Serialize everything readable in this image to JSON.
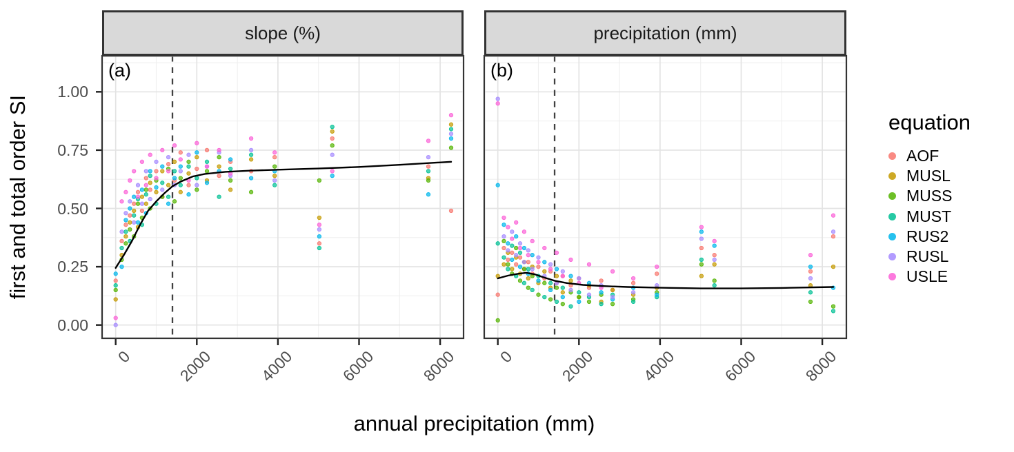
{
  "figure": {
    "x_axis_title": "annual precipitation (mm)",
    "y_axis_title": "first and total order SI",
    "x_tick_labels": [
      "0",
      "2000",
      "4000",
      "6000",
      "8000"
    ],
    "x_tick_values": [
      0,
      2000,
      4000,
      6000,
      8000
    ],
    "x_minor_values": [
      1000,
      3000,
      5000,
      7000
    ],
    "y_tick_labels": [
      "0.00",
      "0.25",
      "0.50",
      "0.75",
      "1.00"
    ],
    "y_tick_values": [
      0,
      0.25,
      0.5,
      0.75,
      1.0
    ],
    "y_minor_values": [
      0.125,
      0.375,
      0.625,
      0.875,
      1.125
    ],
    "colors": {
      "strip_bg": "#d9d9d9",
      "panel_border": "#333333",
      "grid_major": "#e3e3e3",
      "grid_minor": "#efefef",
      "tick_label": "#4d4d4d",
      "tick_mark": "#222222",
      "dashed_line": "#404040",
      "smooth_line": "#000000"
    }
  },
  "legend": {
    "title": "equation",
    "entries": [
      {
        "label": "AOF",
        "color": "#F8766D"
      },
      {
        "label": "MUSL",
        "color": "#C49A00"
      },
      {
        "label": "MUSS",
        "color": "#53B400"
      },
      {
        "label": "MUST",
        "color": "#00C094"
      },
      {
        "label": "RUS2",
        "color": "#00B6EB"
      },
      {
        "label": "RUSL",
        "color": "#A58AFF"
      },
      {
        "label": "USLE",
        "color": "#FB61D7"
      }
    ]
  },
  "chart_data": {
    "type": "scatter",
    "title": "",
    "xlabel": "annual precipitation (mm)",
    "ylabel": "first and total order SI",
    "xlim": [
      -335,
      8580
    ],
    "ylim": [
      -0.06,
      1.155
    ],
    "grid": true,
    "legend_position": "right",
    "dashed_reference_x": 1400,
    "facets": [
      {
        "key": "slope",
        "letter": "(a)",
        "strip": "slope (%)"
      },
      {
        "key": "precipitation",
        "letter": "(b)",
        "strip": "precipitation (mm)"
      }
    ],
    "x_sites": [
      0,
      150,
      250,
      350,
      450,
      550,
      650,
      750,
      850,
      1000,
      1150,
      1300,
      1450,
      1600,
      1800,
      2000,
      2250,
      2550,
      2830,
      3340,
      3920,
      5020,
      5340,
      7710,
      8270
    ],
    "series": [
      {
        "name": "AOF",
        "color": "#F8766D",
        "y_by_facet": {
          "slope": [
            0.19,
            0.36,
            0.43,
            0.47,
            0.52,
            0.57,
            0.49,
            0.63,
            0.58,
            0.66,
            0.55,
            0.69,
            0.62,
            0.74,
            0.6,
            0.67,
            0.75,
            0.64,
            0.7,
            0.66,
            0.72,
            0.35,
            0.8,
            0.68,
            0.49
          ],
          "precipitation": [
            0.13,
            0.33,
            0.28,
            0.31,
            0.26,
            0.29,
            0.24,
            0.27,
            0.22,
            0.25,
            0.2,
            0.23,
            0.18,
            0.21,
            0.17,
            0.2,
            0.16,
            0.19,
            0.15,
            0.18,
            0.22,
            0.33,
            0.3,
            0.23,
            0.38
          ]
        }
      },
      {
        "name": "MUSL",
        "color": "#C49A00",
        "y_by_facet": {
          "slope": [
            0.11,
            0.3,
            0.38,
            0.44,
            0.49,
            0.42,
            0.55,
            0.52,
            0.61,
            0.57,
            0.66,
            0.6,
            0.7,
            0.57,
            0.65,
            0.72,
            0.62,
            0.68,
            0.58,
            0.71,
            0.64,
            0.46,
            0.83,
            0.63,
            0.86
          ],
          "precipitation": [
            0.21,
            0.26,
            0.31,
            0.24,
            0.29,
            0.22,
            0.27,
            0.2,
            0.25,
            0.18,
            0.23,
            0.16,
            0.21,
            0.14,
            0.19,
            0.12,
            0.17,
            0.1,
            0.15,
            0.13,
            0.16,
            0.21,
            0.26,
            0.17,
            0.25
          ]
        }
      },
      {
        "name": "MUSS",
        "color": "#53B400",
        "y_by_facet": {
          "slope": [
            0.15,
            0.28,
            0.35,
            0.41,
            0.38,
            0.52,
            0.46,
            0.58,
            0.5,
            0.62,
            0.55,
            0.67,
            0.53,
            0.63,
            0.7,
            0.58,
            0.66,
            0.72,
            0.62,
            0.57,
            0.68,
            0.62,
            0.77,
            0.62,
            0.76
          ],
          "precipitation": [
            0.02,
            0.36,
            0.26,
            0.22,
            0.33,
            0.19,
            0.24,
            0.16,
            0.21,
            0.13,
            0.18,
            0.11,
            0.16,
            0.09,
            0.14,
            0.12,
            0.1,
            0.13,
            0.09,
            0.11,
            0.14,
            0.26,
            0.19,
            0.1,
            0.08
          ]
        }
      },
      {
        "name": "MUST",
        "color": "#00C094",
        "y_by_facet": {
          "slope": [
            0.17,
            0.33,
            0.4,
            0.36,
            0.47,
            0.54,
            0.43,
            0.56,
            0.64,
            0.52,
            0.61,
            0.55,
            0.66,
            0.6,
            0.68,
            0.63,
            0.7,
            0.55,
            0.67,
            0.73,
            0.6,
            0.33,
            0.85,
            0.66,
            0.84
          ],
          "precipitation": [
            0.35,
            0.29,
            0.24,
            0.34,
            0.21,
            0.31,
            0.18,
            0.24,
            0.15,
            0.21,
            0.12,
            0.18,
            0.1,
            0.16,
            0.08,
            0.14,
            0.12,
            0.09,
            0.13,
            0.1,
            0.12,
            0.28,
            0.17,
            0.14,
            0.06
          ]
        }
      },
      {
        "name": "RUS2",
        "color": "#00B6EB",
        "y_by_facet": {
          "slope": [
            0.22,
            0.25,
            0.45,
            0.5,
            0.55,
            0.44,
            0.58,
            0.48,
            0.66,
            0.59,
            0.68,
            0.52,
            0.63,
            0.68,
            0.56,
            0.74,
            0.61,
            0.66,
            0.71,
            0.63,
            0.66,
            0.38,
            0.64,
            0.56,
            0.8
          ],
          "precipitation": [
            0.6,
            0.43,
            0.35,
            0.28,
            0.38,
            0.25,
            0.33,
            0.22,
            0.3,
            0.19,
            0.27,
            0.15,
            0.24,
            0.12,
            0.21,
            0.1,
            0.18,
            0.14,
            0.11,
            0.16,
            0.13,
            0.4,
            0.34,
            0.25,
            0.16
          ]
        }
      },
      {
        "name": "RUSL",
        "color": "#A58AFF",
        "y_by_facet": {
          "slope": [
            0.0,
            0.4,
            0.48,
            0.53,
            0.44,
            0.6,
            0.52,
            0.66,
            0.54,
            0.7,
            0.58,
            0.72,
            0.6,
            0.66,
            0.73,
            0.6,
            0.68,
            0.74,
            0.64,
            0.75,
            0.62,
            0.41,
            0.73,
            0.72,
            0.82
          ],
          "precipitation": [
            0.97,
            0.38,
            0.32,
            0.4,
            0.3,
            0.35,
            0.27,
            0.32,
            0.24,
            0.29,
            0.21,
            0.26,
            0.18,
            0.23,
            0.15,
            0.2,
            0.13,
            0.17,
            0.12,
            0.14,
            0.17,
            0.37,
            0.28,
            0.2,
            0.4
          ]
        }
      },
      {
        "name": "USLE",
        "color": "#FB61D7",
        "y_by_facet": {
          "slope": [
            0.03,
            0.53,
            0.57,
            0.62,
            0.66,
            0.55,
            0.7,
            0.6,
            0.73,
            0.63,
            0.75,
            0.66,
            0.77,
            0.71,
            0.62,
            0.78,
            0.68,
            0.75,
            0.65,
            0.8,
            0.74,
            0.43,
            0.66,
            0.79,
            0.9
          ],
          "precipitation": [
            0.95,
            0.46,
            0.42,
            0.37,
            0.44,
            0.33,
            0.4,
            0.3,
            0.36,
            0.27,
            0.33,
            0.24,
            0.31,
            0.21,
            0.28,
            0.18,
            0.26,
            0.16,
            0.23,
            0.2,
            0.25,
            0.42,
            0.36,
            0.3,
            0.47
          ]
        }
      }
    ],
    "smooth_by_facet": {
      "slope": [
        [
          0,
          0.245
        ],
        [
          200,
          0.3
        ],
        [
          400,
          0.36
        ],
        [
          600,
          0.43
        ],
        [
          800,
          0.49
        ],
        [
          1000,
          0.53
        ],
        [
          1200,
          0.565
        ],
        [
          1400,
          0.595
        ],
        [
          1600,
          0.615
        ],
        [
          1900,
          0.637
        ],
        [
          2200,
          0.648
        ],
        [
          2700,
          0.657
        ],
        [
          3300,
          0.662
        ],
        [
          4000,
          0.666
        ],
        [
          5000,
          0.671
        ],
        [
          6000,
          0.678
        ],
        [
          7000,
          0.687
        ],
        [
          8270,
          0.7
        ]
      ],
      "precipitation": [
        [
          0,
          0.2
        ],
        [
          250,
          0.212
        ],
        [
          500,
          0.22
        ],
        [
          700,
          0.224
        ],
        [
          900,
          0.218
        ],
        [
          1100,
          0.206
        ],
        [
          1400,
          0.19
        ],
        [
          1700,
          0.18
        ],
        [
          2100,
          0.172
        ],
        [
          2600,
          0.167
        ],
        [
          3200,
          0.163
        ],
        [
          4000,
          0.16
        ],
        [
          5000,
          0.157
        ],
        [
          6000,
          0.157
        ],
        [
          7000,
          0.159
        ],
        [
          8270,
          0.163
        ]
      ]
    },
    "point_opacity": 0.7
  }
}
